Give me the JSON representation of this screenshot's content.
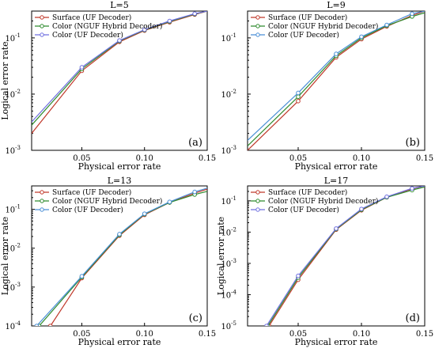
{
  "chart_data": [
    {
      "type": "line",
      "title": "L=5",
      "panel_label": "(a)",
      "xlabel": "Physical error rate",
      "ylabel": "Logical error rate",
      "xlim": [
        0.01,
        0.15
      ],
      "ylim": [
        0.001,
        0.3
      ],
      "yscale": "log",
      "x_ticks": [
        "0.05",
        "0.10",
        "0.15"
      ],
      "y_ticks": [
        {
          "base": "10",
          "exp": "-3"
        },
        {
          "base": "10",
          "exp": "-2"
        },
        {
          "base": "10",
          "exp": "-1"
        }
      ],
      "legend_position": "top-left",
      "series": [
        {
          "name": "Surface (UF Decoder)",
          "color": "#c0392b",
          "marker": "circle",
          "x": [
            0.01,
            0.05,
            0.08,
            0.1,
            0.12,
            0.14,
            0.15
          ],
          "y": [
            0.002,
            0.026,
            0.085,
            0.135,
            0.19,
            0.26,
            0.3
          ]
        },
        {
          "name": "Color (NGUF Hybrid Decoder)",
          "color": "#2e8b2e",
          "marker": "circle",
          "x": [
            0.01,
            0.05,
            0.08,
            0.1,
            0.12,
            0.14,
            0.15
          ],
          "y": [
            0.0028,
            0.028,
            0.088,
            0.138,
            0.195,
            0.265,
            0.3
          ]
        },
        {
          "name": "Color (UF Decoder)",
          "color": "#6f6fe0",
          "marker": "circle",
          "x": [
            0.01,
            0.05,
            0.08,
            0.1,
            0.12,
            0.14,
            0.15
          ],
          "y": [
            0.0032,
            0.03,
            0.09,
            0.14,
            0.2,
            0.27,
            0.3
          ]
        }
      ]
    },
    {
      "type": "line",
      "title": "L=9",
      "panel_label": "(b)",
      "xlabel": "Physical error rate",
      "ylabel": "",
      "xlim": [
        0.01,
        0.15
      ],
      "ylim": [
        0.001,
        0.3
      ],
      "yscale": "log",
      "x_ticks": [
        "0.05",
        "0.10",
        "0.15"
      ],
      "y_ticks": [
        {
          "base": "10",
          "exp": "-3"
        },
        {
          "base": "10",
          "exp": "-2"
        },
        {
          "base": "10",
          "exp": "-1"
        }
      ],
      "legend_position": "top-left",
      "series": [
        {
          "name": "Surface (UF Decoder)",
          "color": "#c0392b",
          "marker": "circle",
          "x": [
            0.01,
            0.05,
            0.08,
            0.1,
            0.12,
            0.14,
            0.15
          ],
          "y": [
            0.001,
            0.0075,
            0.045,
            0.095,
            0.16,
            0.25,
            0.3
          ]
        },
        {
          "name": "Color (NGUF Hybrid Decoder)",
          "color": "#2e8b2e",
          "marker": "circle",
          "x": [
            0.01,
            0.05,
            0.08,
            0.1,
            0.12,
            0.14,
            0.15
          ],
          "y": [
            0.0012,
            0.009,
            0.048,
            0.1,
            0.165,
            0.24,
            0.28
          ]
        },
        {
          "name": "Color (UF Decoder)",
          "color": "#4a8fd6",
          "marker": "circle",
          "x": [
            0.01,
            0.05,
            0.08,
            0.1,
            0.12,
            0.14,
            0.15
          ],
          "y": [
            0.0015,
            0.0105,
            0.052,
            0.105,
            0.17,
            0.27,
            0.3
          ]
        }
      ]
    },
    {
      "type": "line",
      "title": "L=13",
      "panel_label": "(c)",
      "xlabel": "Physical error rate",
      "ylabel": "Logical error rate",
      "xlim": [
        0.01,
        0.15
      ],
      "ylim": [
        0.0001,
        0.4
      ],
      "yscale": "log",
      "x_ticks": [
        "0.05",
        "0.10",
        "0.15"
      ],
      "y_ticks": [
        {
          "base": "10",
          "exp": "-4"
        },
        {
          "base": "10",
          "exp": "-3"
        },
        {
          "base": "10",
          "exp": "-2"
        },
        {
          "base": "10",
          "exp": "-1"
        }
      ],
      "legend_position": "top-left",
      "series": [
        {
          "name": "Surface (UF Decoder)",
          "color": "#c0392b",
          "marker": "circle",
          "x": [
            0.025,
            0.05,
            0.08,
            0.1,
            0.12,
            0.14,
            0.15
          ],
          "y": [
            0.0001,
            0.0017,
            0.021,
            0.072,
            0.15,
            0.26,
            0.33
          ]
        },
        {
          "name": "Color (NGUF Hybrid Decoder)",
          "color": "#2e8b2e",
          "marker": "circle",
          "x": [
            0.016,
            0.05,
            0.08,
            0.1,
            0.12,
            0.14,
            0.15
          ],
          "y": [
            0.0001,
            0.0018,
            0.022,
            0.075,
            0.15,
            0.24,
            0.29
          ]
        },
        {
          "name": "Color (UF Decoder)",
          "color": "#4a8fd6",
          "marker": "circle",
          "x": [
            0.014,
            0.05,
            0.08,
            0.1,
            0.12,
            0.14,
            0.15
          ],
          "y": [
            0.0001,
            0.0019,
            0.023,
            0.077,
            0.155,
            0.28,
            0.35
          ]
        }
      ]
    },
    {
      "type": "line",
      "title": "L=17",
      "panel_label": "(d)",
      "xlabel": "Physical error rate",
      "ylabel": "Logical error rate",
      "xlim": [
        0.01,
        0.15
      ],
      "ylim": [
        1e-05,
        0.3
      ],
      "yscale": "log",
      "x_ticks": [
        "0.05",
        "0.10",
        "0.15"
      ],
      "y_ticks": [
        {
          "base": "10",
          "exp": "-5"
        },
        {
          "base": "10",
          "exp": "-4"
        },
        {
          "base": "10",
          "exp": "-3"
        },
        {
          "base": "10",
          "exp": "-2"
        },
        {
          "base": "10",
          "exp": "-1"
        }
      ],
      "legend_position": "top-left",
      "series": [
        {
          "name": "Surface (UF Decoder)",
          "color": "#c0392b",
          "marker": "circle",
          "x": [
            0.027,
            0.05,
            0.08,
            0.1,
            0.12,
            0.14,
            0.15
          ],
          "y": [
            1e-05,
            0.0003,
            0.012,
            0.05,
            0.13,
            0.24,
            0.3
          ]
        },
        {
          "name": "Color (NGUF Hybrid Decoder)",
          "color": "#2e8b2e",
          "marker": "circle",
          "x": [
            0.026,
            0.05,
            0.08,
            0.1,
            0.12,
            0.14,
            0.15
          ],
          "y": [
            1e-05,
            0.00035,
            0.0125,
            0.052,
            0.13,
            0.22,
            0.28
          ]
        },
        {
          "name": "Color (UF Decoder)",
          "color": "#6f6fe0",
          "marker": "circle",
          "x": [
            0.025,
            0.05,
            0.08,
            0.1,
            0.12,
            0.14,
            0.15
          ],
          "y": [
            1e-05,
            0.0004,
            0.013,
            0.055,
            0.135,
            0.25,
            0.3
          ]
        }
      ]
    }
  ]
}
